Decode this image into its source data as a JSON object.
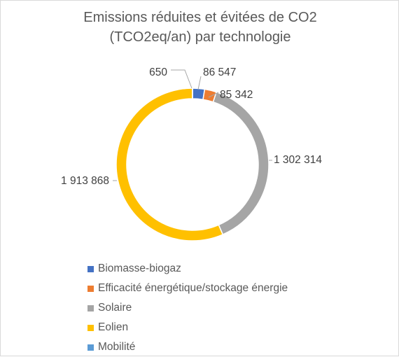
{
  "chart_data": {
    "type": "pie",
    "title_lines": [
      "Emissions réduites et évitées de CO2",
      "(TCO2eq/an) par technologie"
    ],
    "categories": [
      "Biomasse-biogaz",
      "Efficacité énergétique/stockage énergie",
      "Solaire",
      "Eolien",
      "Mobilité"
    ],
    "values": [
      86547,
      85342,
      1302314,
      1913868,
      650
    ],
    "data_labels": [
      "86 547",
      "85 342",
      "1 302 314",
      "1 913 868",
      "650"
    ],
    "colors": [
      "#4472c4",
      "#ed7d31",
      "#a5a5a5",
      "#ffc000",
      "#5b9bd5"
    ],
    "legend_position": "bottom",
    "donut": true
  }
}
